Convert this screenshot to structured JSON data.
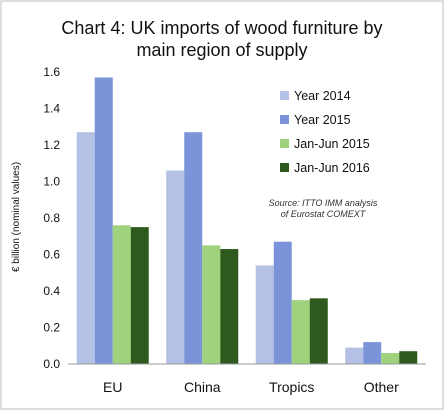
{
  "chart_data": {
    "type": "bar",
    "title": "Chart 4: UK imports of wood furniture by main region of supply",
    "title_lines": [
      "Chart 4: UK imports of wood furniture by",
      "main region of supply"
    ],
    "ylabel": "€ billion (nominal values)",
    "xlabel": "",
    "ylim": [
      0,
      1.6
    ],
    "yticks": [
      "0.0",
      "0.2",
      "0.4",
      "0.6",
      "0.8",
      "1.0",
      "1.2",
      "1.4",
      "1.6"
    ],
    "categories": [
      "EU",
      "China",
      "Tropics",
      "Other"
    ],
    "series": [
      {
        "name": "Year 2014",
        "color": "#b4c0e4",
        "values": [
          1.27,
          1.06,
          0.54,
          0.09
        ]
      },
      {
        "name": "Year 2015",
        "color": "#7b93d8",
        "values": [
          1.57,
          1.27,
          0.67,
          0.12
        ]
      },
      {
        "name": "Jan-Jun 2015",
        "color": "#9ed27d",
        "values": [
          0.76,
          0.65,
          0.35,
          0.06
        ]
      },
      {
        "name": "Jan-Jun 2016",
        "color": "#2f5a1e",
        "values": [
          0.75,
          0.63,
          0.36,
          0.07
        ]
      }
    ],
    "source_lines": [
      "Source: ITTO IMM analysis",
      "of Eurostat COMEXT"
    ],
    "grid": false,
    "legend_position": "right"
  }
}
